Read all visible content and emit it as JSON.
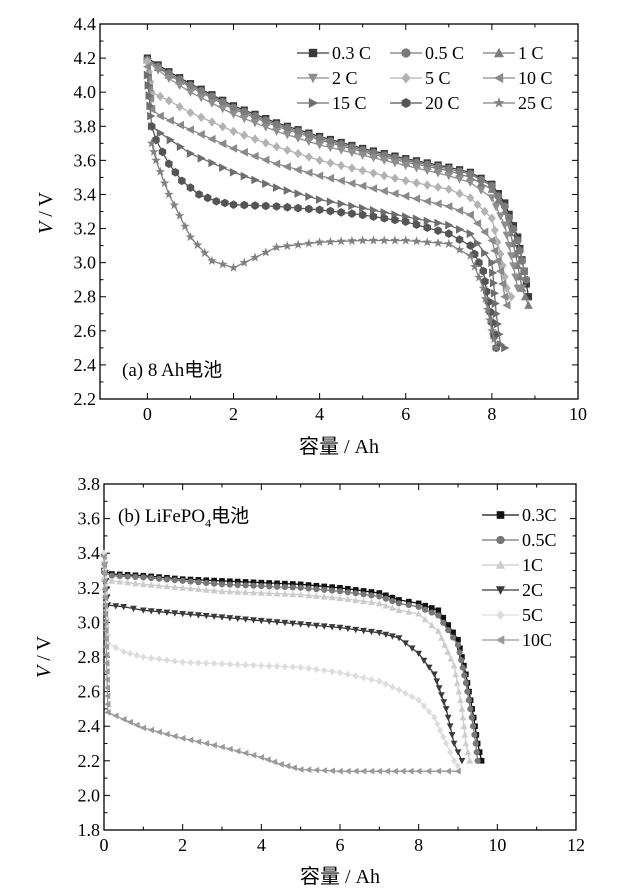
{
  "chart_data": [
    {
      "type": "line",
      "panel_label": "(a)  8 Ah电池",
      "xlabel": "容量 / Ah",
      "ylabel_italic": "V",
      "ylabel_rest": " / V",
      "xlim": [
        -1.1,
        10
      ],
      "ylim": [
        2.2,
        4.4
      ],
      "xticks": [
        0,
        2,
        4,
        6,
        8,
        10
      ],
      "xtick_labels": [
        "0",
        "2",
        "4",
        "6",
        "8",
        "10"
      ],
      "yticks": [
        2.2,
        2.4,
        2.6,
        2.8,
        3.0,
        3.2,
        3.4,
        3.6,
        3.8,
        4.0,
        4.2,
        4.4
      ],
      "ytick_labels": [
        "2.2",
        "2.4",
        "2.6",
        "2.8",
        "3.0",
        "3.2",
        "3.4",
        "3.6",
        "3.8",
        "4.0",
        "4.2",
        "4.4"
      ],
      "legend_position": "top-right",
      "legend_columns": 3,
      "series": [
        {
          "name": "0.3 C",
          "marker": "square",
          "color": "#3a3a3a",
          "x": [
            0,
            0.5,
            1,
            2,
            3,
            4,
            5,
            6,
            7,
            7.5,
            8,
            8.3,
            8.6,
            8.75,
            8.85
          ],
          "y": [
            4.2,
            4.12,
            4.05,
            3.92,
            3.82,
            3.74,
            3.67,
            3.61,
            3.56,
            3.53,
            3.46,
            3.35,
            3.15,
            2.95,
            2.8
          ]
        },
        {
          "name": "0.5 C",
          "marker": "circle",
          "color": "#7a7a7a",
          "x": [
            0,
            0.5,
            1,
            2,
            3,
            4,
            5,
            6,
            7,
            7.5,
            8,
            8.3,
            8.6,
            8.75,
            8.8
          ],
          "y": [
            4.19,
            4.11,
            4.04,
            3.91,
            3.81,
            3.73,
            3.66,
            3.6,
            3.55,
            3.52,
            3.45,
            3.33,
            3.13,
            2.95,
            2.9
          ]
        },
        {
          "name": "1 C",
          "marker": "triangle-up",
          "color": "#7d7d7d",
          "x": [
            0,
            0.5,
            1,
            2,
            3,
            4,
            5,
            6,
            7,
            7.5,
            8,
            8.3,
            8.55,
            8.7,
            8.85
          ],
          "y": [
            4.19,
            4.1,
            4.03,
            3.9,
            3.8,
            3.72,
            3.65,
            3.59,
            3.54,
            3.5,
            3.43,
            3.3,
            3.05,
            2.85,
            2.75
          ]
        },
        {
          "name": "2 C",
          "marker": "triangle-down",
          "color": "#8e8e8e",
          "x": [
            0,
            0.5,
            1,
            2,
            3,
            4,
            5,
            6,
            7,
            7.5,
            8,
            8.3,
            8.5,
            8.6,
            8.7
          ],
          "y": [
            4.18,
            4.08,
            4.0,
            3.87,
            3.77,
            3.69,
            3.63,
            3.57,
            3.51,
            3.47,
            3.38,
            3.22,
            2.98,
            2.85,
            2.85
          ]
        },
        {
          "name": "5 C",
          "marker": "diamond",
          "color": "#b3b3b3",
          "x": [
            0,
            0.1,
            0.5,
            1,
            2,
            3,
            4,
            5,
            6,
            7,
            7.5,
            8,
            8.2,
            8.35,
            8.45
          ],
          "y": [
            4.18,
            4.0,
            3.95,
            3.88,
            3.77,
            3.68,
            3.6,
            3.54,
            3.48,
            3.43,
            3.38,
            3.26,
            3.05,
            2.85,
            2.8
          ]
        },
        {
          "name": "10 C",
          "marker": "triangle-left",
          "color": "#8a8a8a",
          "x": [
            0,
            0.1,
            0.3,
            1,
            2,
            3,
            4,
            5,
            6,
            7,
            7.5,
            8,
            8.2,
            8.3,
            8.35
          ],
          "y": [
            4.15,
            3.9,
            3.86,
            3.78,
            3.67,
            3.58,
            3.51,
            3.45,
            3.39,
            3.33,
            3.28,
            3.13,
            2.95,
            2.8,
            2.75
          ]
        },
        {
          "name": "15 C",
          "marker": "triangle-right",
          "color": "#6e6e6e",
          "x": [
            0,
            0.1,
            0.3,
            1,
            2,
            3,
            4,
            5,
            6,
            7,
            7.5,
            8,
            8.1,
            8.2,
            8.3
          ],
          "y": [
            4.1,
            3.8,
            3.76,
            3.64,
            3.53,
            3.44,
            3.37,
            3.32,
            3.27,
            3.22,
            3.17,
            3.0,
            2.7,
            2.52,
            2.5
          ]
        },
        {
          "name": "20 C",
          "marker": "hexagon",
          "color": "#555555",
          "x": [
            0.1,
            0.2,
            0.5,
            0.8,
            1.2,
            1.6,
            2,
            3,
            4,
            5,
            6,
            7,
            7.5,
            7.8,
            8.0,
            8.1
          ],
          "y": [
            3.8,
            3.72,
            3.58,
            3.48,
            3.4,
            3.36,
            3.34,
            3.33,
            3.31,
            3.28,
            3.24,
            3.17,
            3.1,
            2.95,
            2.65,
            2.5
          ]
        },
        {
          "name": "25 C",
          "marker": "star",
          "color": "#808080",
          "x": [
            0.1,
            0.2,
            0.5,
            1,
            1.5,
            2,
            2.5,
            3,
            4,
            5,
            6,
            7,
            7.5,
            7.8,
            8.0,
            8.1
          ],
          "y": [
            3.7,
            3.6,
            3.4,
            3.15,
            3.01,
            2.97,
            3.03,
            3.09,
            3.12,
            3.13,
            3.13,
            3.11,
            3.04,
            2.85,
            2.6,
            2.5
          ]
        }
      ]
    },
    {
      "type": "line",
      "panel_label_main": "(b) LiFePO",
      "panel_label_sub": "4",
      "panel_label_tail": "电池",
      "xlabel": "容量 / Ah",
      "ylabel_italic": "V",
      "ylabel_rest": " / V",
      "xlim": [
        0,
        12
      ],
      "ylim": [
        1.8,
        3.8
      ],
      "xticks": [
        0,
        2,
        4,
        6,
        8,
        10,
        12
      ],
      "xtick_labels": [
        "0",
        "2",
        "4",
        "6",
        "8",
        "10",
        "12"
      ],
      "yticks": [
        1.8,
        2.0,
        2.2,
        2.4,
        2.6,
        2.8,
        3.0,
        3.2,
        3.4,
        3.6,
        3.8
      ],
      "ytick_labels": [
        "1.8",
        "2.0",
        "2.2",
        "2.4",
        "2.6",
        "2.8",
        "3.0",
        "3.2",
        "3.4",
        "3.6",
        "3.8"
      ],
      "legend_position": "top-right",
      "legend_columns": 1,
      "series": [
        {
          "name": "0.3C",
          "marker": "square",
          "color": "#111111",
          "x": [
            0,
            0.2,
            1,
            2,
            3,
            4,
            5,
            6,
            7,
            7.5,
            8,
            8.5,
            9,
            9.2,
            9.4,
            9.5,
            9.6
          ],
          "y": [
            3.3,
            3.28,
            3.27,
            3.25,
            3.24,
            3.23,
            3.22,
            3.2,
            3.17,
            3.13,
            3.11,
            3.07,
            2.9,
            2.7,
            2.45,
            2.3,
            2.2
          ]
        },
        {
          "name": "0.5C",
          "marker": "circle",
          "color": "#777777",
          "x": [
            0,
            0.2,
            1,
            2,
            3,
            4,
            5,
            6,
            7,
            7.5,
            8,
            8.5,
            9,
            9.2,
            9.35,
            9.45,
            9.5
          ],
          "y": [
            3.29,
            3.27,
            3.26,
            3.24,
            3.22,
            3.21,
            3.2,
            3.18,
            3.15,
            3.11,
            3.09,
            3.04,
            2.87,
            2.65,
            2.45,
            2.3,
            2.2
          ]
        },
        {
          "name": "1C",
          "marker": "triangle-up",
          "color": "#cccccc",
          "x": [
            0,
            0.2,
            1,
            2,
            3,
            4,
            5,
            6,
            7,
            7.5,
            8,
            8.5,
            8.9,
            9.1,
            9.2,
            9.3
          ],
          "y": [
            3.26,
            3.24,
            3.22,
            3.2,
            3.18,
            3.17,
            3.16,
            3.14,
            3.11,
            3.07,
            3.05,
            2.95,
            2.75,
            2.5,
            2.3,
            2.2
          ]
        },
        {
          "name": "2C",
          "marker": "triangle-down",
          "color": "#3a3a3a",
          "x": [
            0,
            0.1,
            0.5,
            1,
            2,
            3,
            4,
            5,
            6,
            7,
            7.5,
            8,
            8.4,
            8.7,
            8.9,
            9.1
          ],
          "y": [
            3.38,
            3.1,
            3.09,
            3.07,
            3.05,
            3.03,
            3.01,
            2.99,
            2.97,
            2.94,
            2.91,
            2.82,
            2.7,
            2.5,
            2.3,
            2.2
          ]
        },
        {
          "name": "5C",
          "marker": "diamond",
          "color": "#dddddd",
          "x": [
            0,
            0.1,
            0.5,
            1,
            2,
            3,
            4,
            5,
            6,
            7,
            7.5,
            8,
            8.4,
            8.7,
            8.9,
            9.0
          ],
          "y": [
            3.4,
            2.88,
            2.83,
            2.8,
            2.77,
            2.76,
            2.75,
            2.74,
            2.71,
            2.66,
            2.61,
            2.55,
            2.45,
            2.3,
            2.2,
            2.17
          ]
        },
        {
          "name": "10C",
          "marker": "triangle-left",
          "color": "#9a9a9a",
          "x": [
            0,
            0.1,
            0.5,
            1,
            2,
            3,
            4,
            4.5,
            5,
            6,
            7,
            8,
            8.5,
            9.0
          ],
          "y": [
            3.38,
            2.48,
            2.44,
            2.39,
            2.33,
            2.28,
            2.22,
            2.18,
            2.15,
            2.14,
            2.14,
            2.14,
            2.14,
            2.14
          ]
        }
      ]
    }
  ]
}
